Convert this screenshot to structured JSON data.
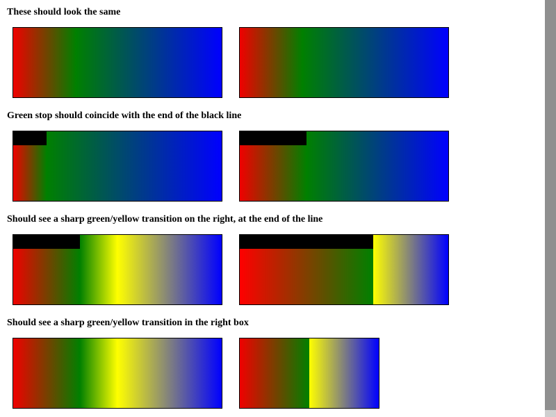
{
  "sections": [
    {
      "heading": "These should look the same"
    },
    {
      "heading": "Green stop should coincide with the end of the black line"
    },
    {
      "heading": "Should see a sharp green/yellow transition on the right, at the end of the line"
    },
    {
      "heading": "Should see a sharp green/yellow transition in the right box"
    }
  ],
  "colors": {
    "red": "#ff0000",
    "green": "#008000",
    "yellow": "#ffff00",
    "blue": "#0000ff",
    "line": "#000000",
    "scrollbar": "#8f8f8f"
  }
}
